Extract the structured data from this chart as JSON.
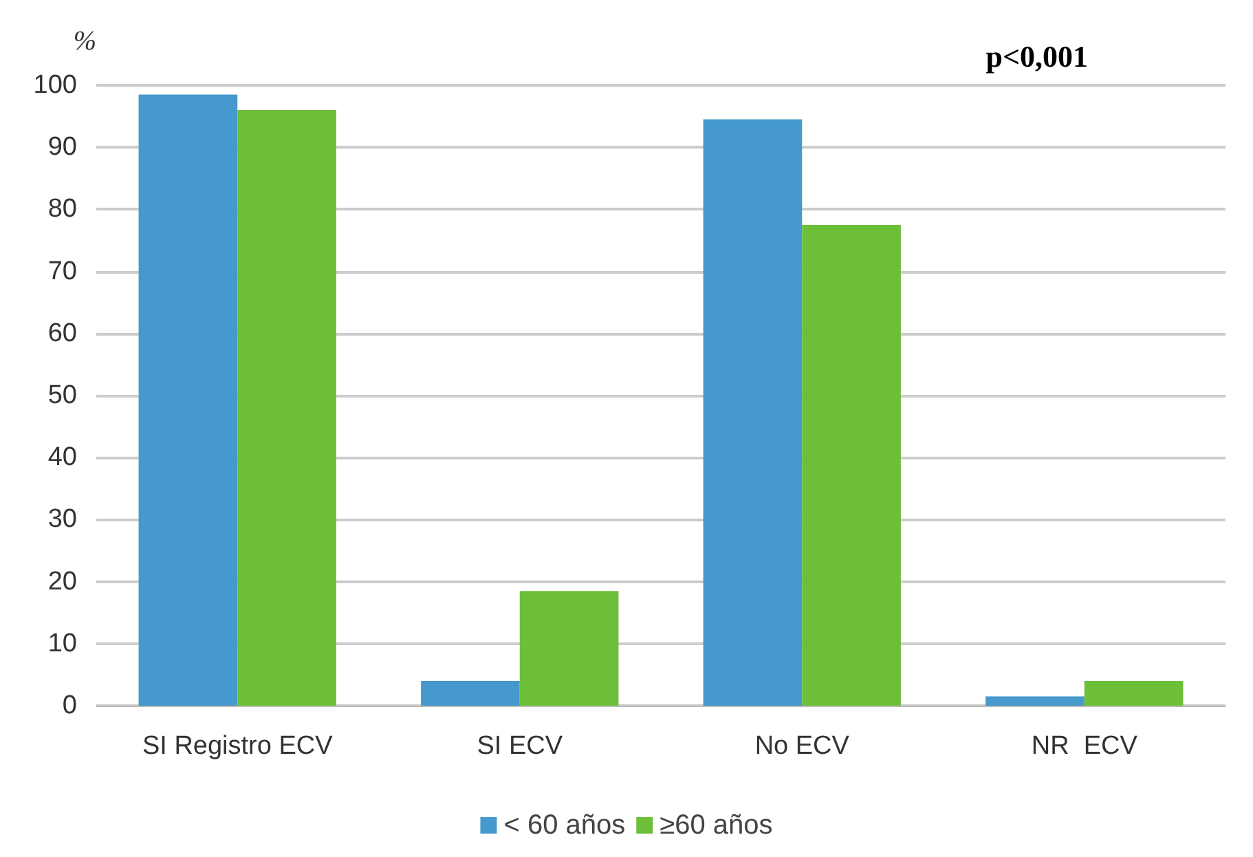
{
  "chart_data": {
    "type": "bar",
    "ylabel": "%",
    "annotations": [
      "p<0,001"
    ],
    "categories": [
      "SI Registro ECV",
      "SI ECV",
      "No ECV",
      "NR  ECV"
    ],
    "series": [
      {
        "name": "< 60 años",
        "color": "#4599cc",
        "values": [
          98.5,
          4,
          94.5,
          1.5
        ]
      },
      {
        "name": "≥60 años",
        "color": "#6dbf3a",
        "values": [
          96,
          18.5,
          77.5,
          4
        ]
      }
    ],
    "ylim": [
      0,
      100
    ],
    "yticks": [
      0,
      10,
      20,
      30,
      40,
      50,
      60,
      70,
      80,
      90,
      100
    ],
    "grid": "y",
    "legend": "bottom"
  }
}
